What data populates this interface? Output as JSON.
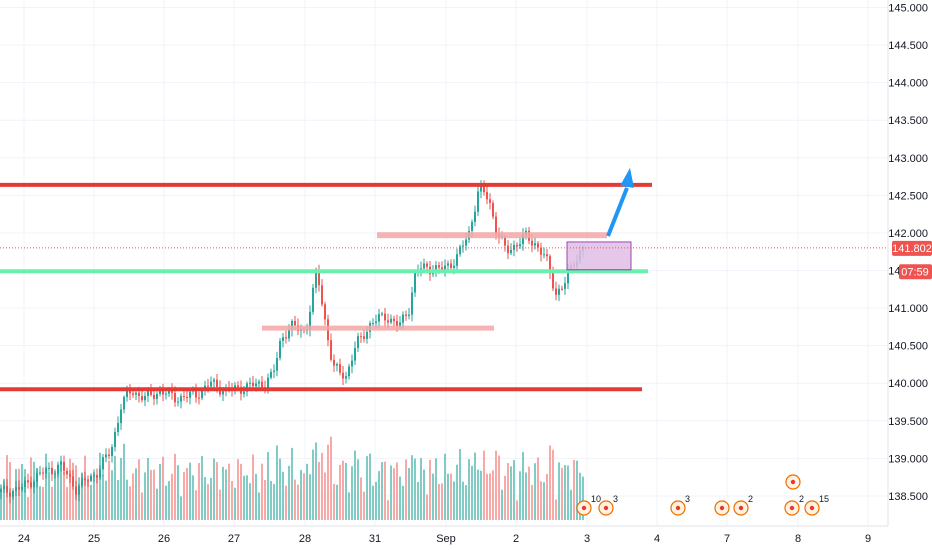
{
  "chart_data": {
    "type": "candlestick",
    "x_ticks": [
      "24",
      "25",
      "26",
      "27",
      "28",
      "31",
      "Sep",
      "2",
      "3",
      "4",
      "7",
      "8",
      "9"
    ],
    "y_ticks": [
      "145.000",
      "144.500",
      "144.000",
      "143.500",
      "143.000",
      "142.500",
      "142.000",
      "141.500",
      "141.000",
      "140.500",
      "140.000",
      "139.500",
      "139.000",
      "138.500"
    ],
    "ylim": [
      138.1,
      145.1
    ],
    "grid": true,
    "last_price": "141.802",
    "countdown": "07:59",
    "price_line_color": "#ef5350",
    "countdown_color": "#ef5350",
    "up_color": "#26a69a",
    "down_color": "#ef5350",
    "volume_up_color": "#80cbc4",
    "volume_down_color": "#f7a9a7",
    "annotations": {
      "resistance_level": 142.64,
      "support_level": 139.92,
      "green_level": 141.49,
      "zone_1": 141.97,
      "zone_2": 140.74,
      "target_box": [
        141.51,
        141.88
      ],
      "arrow_color": "#2196f3",
      "box_color": "#e1bee7",
      "heavy_line_color": "#e53935",
      "green_line_color": "#69f0ae",
      "zone_color": "#f4a6a6"
    },
    "events": [
      {
        "icon": "flag-icon",
        "count": "10"
      },
      {
        "icon": "flag-icon",
        "count": "3"
      },
      {
        "icon": "flag-icon",
        "count": "3"
      },
      {
        "icon": "flag-icon",
        "count": ""
      },
      {
        "icon": "flag-icon",
        "count": "2"
      },
      {
        "icon": "flag-icon",
        "count": "2"
      },
      {
        "icon": "flag-icon",
        "count": "15"
      },
      {
        "icon": "flag-icon",
        "count": ""
      }
    ]
  }
}
